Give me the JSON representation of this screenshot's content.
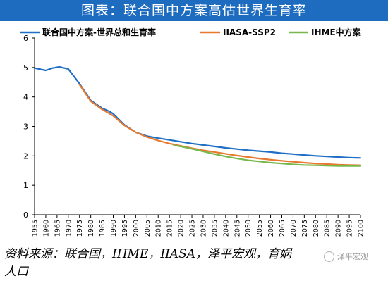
{
  "page": {
    "title": "图表：联合国中方案高估世界生育率",
    "source": "资料来源：联合国，IHME，IIASA，泽平宏观，育娲人口",
    "watermark": "泽平宏观"
  },
  "chart_data": {
    "type": "line",
    "title": "图表：联合国中方案高估世界生育率",
    "xlabel": "",
    "ylabel": "",
    "ylim": [
      0,
      6
    ],
    "xlim": [
      1955,
      2100
    ],
    "yticks": [
      "0",
      "1",
      "2",
      "3",
      "4",
      "5",
      "6"
    ],
    "xticks": [
      "1955",
      "1960",
      "1965",
      "1970",
      "1975",
      "1980",
      "1985",
      "1990",
      "1995",
      "2000",
      "2005",
      "2010",
      "2015",
      "2020",
      "2025",
      "2030",
      "2035",
      "2040",
      "2045",
      "2050",
      "2055",
      "2060",
      "2065",
      "2070",
      "2075",
      "2080",
      "2085",
      "2090",
      "2095",
      "2100"
    ],
    "grid": false,
    "legend_position": "top",
    "series": [
      {
        "name": "联合国中方案-世界总和生育率",
        "color": "#1f6fc6",
        "x": [
          1955,
          1960,
          1963,
          1966,
          1970,
          1975,
          1980,
          1985,
          1988,
          1990,
          1995,
          2000,
          2005,
          2010,
          2015,
          2020,
          2025,
          2030,
          2035,
          2040,
          2045,
          2050,
          2055,
          2060,
          2065,
          2070,
          2075,
          2080,
          2085,
          2090,
          2095,
          2100
        ],
        "y": [
          4.98,
          4.9,
          4.98,
          5.02,
          4.95,
          4.45,
          3.88,
          3.62,
          3.52,
          3.43,
          3.05,
          2.8,
          2.67,
          2.6,
          2.54,
          2.48,
          2.42,
          2.37,
          2.32,
          2.27,
          2.23,
          2.19,
          2.16,
          2.13,
          2.09,
          2.06,
          2.03,
          2.0,
          1.98,
          1.96,
          1.94,
          1.93
        ]
      },
      {
        "name": "IIASA-SSP2",
        "color": "#e8792e",
        "x": [
          1975,
          1980,
          1985,
          1990,
          1995,
          2000,
          2005,
          2010,
          2015,
          2020,
          2025,
          2030,
          2035,
          2040,
          2045,
          2050,
          2055,
          2060,
          2065,
          2070,
          2075,
          2080,
          2085,
          2090,
          2095,
          2100
        ],
        "y": [
          4.42,
          3.85,
          3.58,
          3.36,
          3.03,
          2.8,
          2.64,
          2.52,
          2.42,
          2.34,
          2.26,
          2.19,
          2.13,
          2.07,
          2.01,
          1.96,
          1.91,
          1.87,
          1.83,
          1.8,
          1.77,
          1.74,
          1.72,
          1.7,
          1.69,
          1.68
        ]
      },
      {
        "name": "IHME中方案",
        "color": "#77b84c",
        "x": [
          2017,
          2020,
          2025,
          2030,
          2035,
          2040,
          2045,
          2050,
          2055,
          2060,
          2065,
          2070,
          2075,
          2080,
          2085,
          2090,
          2095,
          2100
        ],
        "y": [
          2.36,
          2.32,
          2.24,
          2.15,
          2.06,
          1.98,
          1.91,
          1.85,
          1.81,
          1.77,
          1.74,
          1.71,
          1.69,
          1.68,
          1.67,
          1.66,
          1.66,
          1.66
        ]
      }
    ]
  }
}
